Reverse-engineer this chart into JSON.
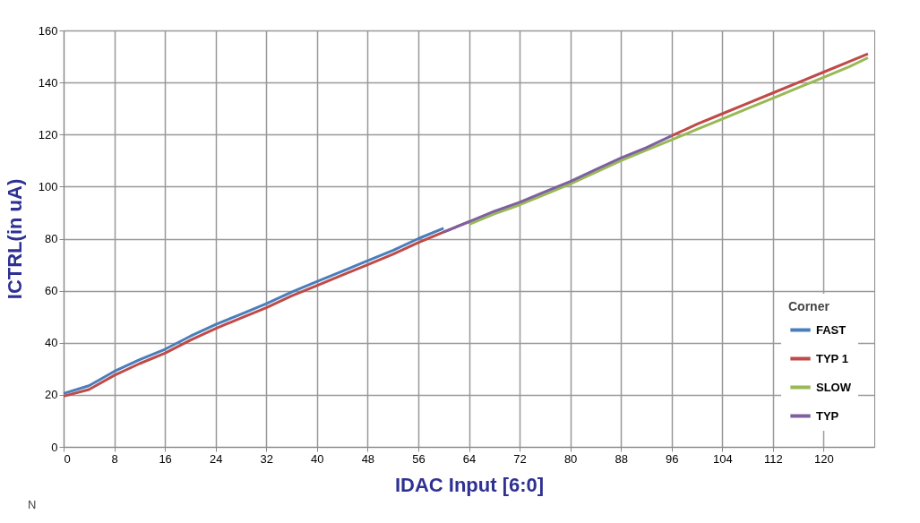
{
  "chart_data": {
    "type": "line",
    "xlabel": "IDAC Input [6:0]",
    "ylabel": "ICTRL(in uA)",
    "legend_title": "Corner",
    "annotations": [
      "N"
    ],
    "x": [
      0,
      4,
      8,
      12,
      16,
      20,
      24,
      28,
      32,
      36,
      40,
      44,
      48,
      52,
      56,
      60,
      64,
      68,
      72,
      76,
      80,
      84,
      88,
      92,
      96,
      100,
      104,
      108,
      112,
      116,
      120,
      124,
      127
    ],
    "series": [
      {
        "name": "FAST",
        "color": "#4a7ebb",
        "values": [
          20.5,
          23.5,
          29,
          33.5,
          37.5,
          42.5,
          47,
          51,
          55,
          59.5,
          63.5,
          67.5,
          71.5,
          75.5,
          80,
          84,
          null,
          null,
          null,
          null,
          null,
          null,
          null,
          null,
          null,
          null,
          null,
          null,
          null,
          null,
          null,
          null,
          null
        ]
      },
      {
        "name": "TYP 1",
        "color": "#be4b48",
        "values": [
          19.5,
          22,
          27.5,
          32,
          36,
          41,
          45.5,
          49.5,
          53.5,
          58,
          62,
          66,
          70,
          74,
          78.5,
          82.5,
          86.5,
          null,
          null,
          null,
          null,
          null,
          null,
          null,
          119.5,
          124,
          128,
          132,
          136,
          140,
          144,
          148,
          151
        ]
      },
      {
        "name": "SLOW",
        "color": "#98b954",
        "values": [
          null,
          null,
          null,
          null,
          null,
          null,
          null,
          null,
          null,
          null,
          null,
          null,
          null,
          null,
          null,
          null,
          85.5,
          89.5,
          93,
          97,
          101,
          105.5,
          110,
          114,
          118,
          122,
          126,
          130,
          134,
          138,
          142,
          146,
          149.5
        ]
      },
      {
        "name": "TYP",
        "color": "#7d60a0",
        "values": [
          null,
          null,
          null,
          null,
          null,
          null,
          null,
          null,
          null,
          null,
          null,
          null,
          null,
          null,
          null,
          82.5,
          86.5,
          90.5,
          94,
          98,
          102,
          106.5,
          111,
          115,
          119.5,
          null,
          null,
          null,
          null,
          null,
          null,
          null,
          null
        ]
      }
    ],
    "xlim": [
      0,
      128
    ],
    "xticks": [
      0,
      8,
      16,
      24,
      32,
      40,
      48,
      56,
      64,
      72,
      80,
      88,
      96,
      104,
      112,
      120
    ],
    "ylim": [
      0,
      160
    ],
    "yticks": [
      0,
      20,
      40,
      60,
      80,
      100,
      120,
      140,
      160
    ],
    "grid": true,
    "legend": "bottom right",
    "marker": "none",
    "line_style": "solid"
  }
}
